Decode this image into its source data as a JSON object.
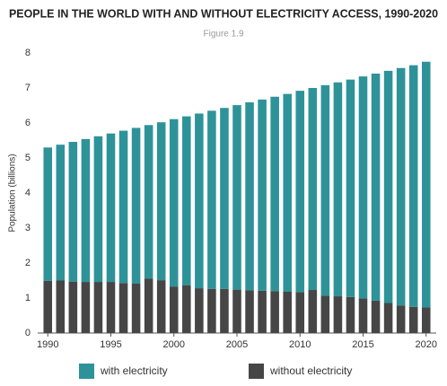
{
  "chart_data": {
    "type": "stacked-bar",
    "title": "PEOPLE IN THE WORLD WITH AND WITHOUT ELECTRICITY ACCESS, 1990-2020",
    "subtitle": "Figure 1.9",
    "y_label": "Population (billions)",
    "x": [
      1990,
      1991,
      1992,
      1993,
      1994,
      1995,
      1996,
      1997,
      1998,
      1999,
      2000,
      2001,
      2002,
      2003,
      2004,
      2005,
      2006,
      2007,
      2008,
      2009,
      2010,
      2011,
      2012,
      2013,
      2014,
      2015,
      2016,
      2017,
      2018,
      2019,
      2020
    ],
    "series": [
      {
        "name": "with electricity",
        "color": "#2e9399",
        "values": [
          3.81,
          3.88,
          3.99,
          4.08,
          4.16,
          4.24,
          4.35,
          4.45,
          4.38,
          4.51,
          4.78,
          4.83,
          4.99,
          5.09,
          5.17,
          5.27,
          5.37,
          5.46,
          5.55,
          5.65,
          5.75,
          5.77,
          6.01,
          6.11,
          6.21,
          6.34,
          6.48,
          6.63,
          6.78,
          6.9,
          7.02
        ]
      },
      {
        "name": "without electricity",
        "color": "#464646",
        "values": [
          1.49,
          1.5,
          1.47,
          1.46,
          1.46,
          1.46,
          1.43,
          1.41,
          1.56,
          1.51,
          1.33,
          1.36,
          1.28,
          1.26,
          1.26,
          1.24,
          1.22,
          1.21,
          1.2,
          1.18,
          1.17,
          1.23,
          1.07,
          1.05,
          1.03,
          0.99,
          0.93,
          0.86,
          0.79,
          0.75,
          0.73
        ]
      }
    ],
    "xlim": [
      1989.2,
      2020.8
    ],
    "xticks": [
      1990,
      1995,
      2000,
      2005,
      2010,
      2015,
      2020
    ],
    "ylim": [
      0,
      8
    ],
    "yticks": [
      0,
      1,
      2,
      3,
      4,
      5,
      6,
      7,
      8
    ],
    "grid": false
  }
}
